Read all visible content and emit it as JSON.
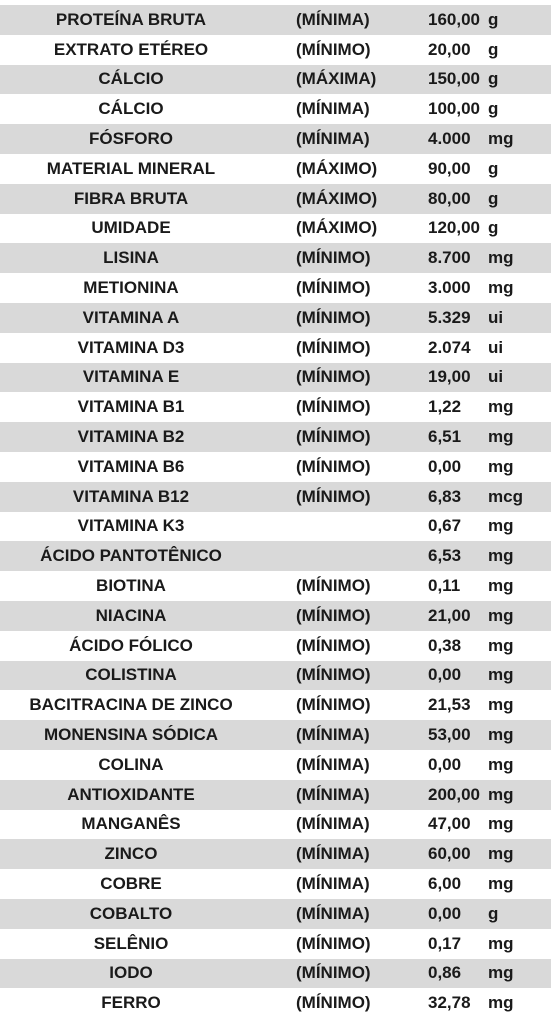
{
  "rows": [
    {
      "name": "PROTEÍNA BRUTA",
      "qualifier": "(MÍNIMA)",
      "value": "160,00",
      "unit": "g"
    },
    {
      "name": "EXTRATO ETÉREO",
      "qualifier": "(MÍNIMO)",
      "value": "20,00",
      "unit": "g"
    },
    {
      "name": "CÁLCIO",
      "qualifier": "(MÁXIMA)",
      "value": "150,00",
      "unit": "g"
    },
    {
      "name": "CÁLCIO",
      "qualifier": "(MÍNIMA)",
      "value": "100,00",
      "unit": "g"
    },
    {
      "name": "FÓSFORO",
      "qualifier": "(MÍNIMA)",
      "value": "4.000",
      "unit": "mg"
    },
    {
      "name": "MATERIAL MINERAL",
      "qualifier": "(MÁXIMO)",
      "value": "90,00",
      "unit": "g"
    },
    {
      "name": "FIBRA BRUTA",
      "qualifier": "(MÁXIMO)",
      "value": "80,00",
      "unit": "g"
    },
    {
      "name": "UMIDADE",
      "qualifier": "(MÁXIMO)",
      "value": "120,00",
      "unit": "g"
    },
    {
      "name": "LISINA",
      "qualifier": "(MÍNIMO)",
      "value": "8.700",
      "unit": "mg"
    },
    {
      "name": "METIONINA",
      "qualifier": "(MÍNIMO)",
      "value": "3.000",
      "unit": "mg"
    },
    {
      "name": "VITAMINA A",
      "qualifier": "(MÍNIMO)",
      "value": "5.329",
      "unit": "ui"
    },
    {
      "name": "VITAMINA D3",
      "qualifier": "(MÍNIMO)",
      "value": "2.074",
      "unit": "ui"
    },
    {
      "name": "VITAMINA E",
      "qualifier": "(MÍNIMO)",
      "value": "19,00",
      "unit": "ui"
    },
    {
      "name": "VITAMINA B1",
      "qualifier": "(MÍNIMO)",
      "value": "1,22",
      "unit": "mg"
    },
    {
      "name": "VITAMINA B2",
      "qualifier": "(MÍNIMO)",
      "value": "6,51",
      "unit": "mg"
    },
    {
      "name": "VITAMINA B6",
      "qualifier": "(MÍNIMO)",
      "value": "0,00",
      "unit": "mg"
    },
    {
      "name": "VITAMINA B12",
      "qualifier": "(MÍNIMO)",
      "value": "6,83",
      "unit": "mcg"
    },
    {
      "name": "VITAMINA K3",
      "qualifier": "",
      "value": "0,67",
      "unit": "mg"
    },
    {
      "name": "ÁCIDO PANTOTÊNICO",
      "qualifier": "",
      "value": "6,53",
      "unit": "mg"
    },
    {
      "name": "BIOTINA",
      "qualifier": "(MÍNIMO)",
      "value": "0,11",
      "unit": "mg"
    },
    {
      "name": "NIACINA",
      "qualifier": "(MÍNIMO)",
      "value": "21,00",
      "unit": "mg"
    },
    {
      "name": "ÁCIDO FÓLICO",
      "qualifier": "(MÍNIMO)",
      "value": "0,38",
      "unit": "mg"
    },
    {
      "name": "COLISTINA",
      "qualifier": "(MÍNIMO)",
      "value": "0,00",
      "unit": "mg"
    },
    {
      "name": "BACITRACINA DE ZINCO",
      "qualifier": "(MÍNIMO)",
      "value": "21,53",
      "unit": "mg"
    },
    {
      "name": "MONENSINA SÓDICA",
      "qualifier": "(MÍNIMA)",
      "value": "53,00",
      "unit": "mg"
    },
    {
      "name": "COLINA",
      "qualifier": "(MÍNIMA)",
      "value": "0,00",
      "unit": "mg"
    },
    {
      "name": "ANTIOXIDANTE",
      "qualifier": "(MÍNIMA)",
      "value": "200,00",
      "unit": "mg"
    },
    {
      "name": "MANGANÊS",
      "qualifier": "(MÍNIMA)",
      "value": "47,00",
      "unit": "mg"
    },
    {
      "name": "ZINCO",
      "qualifier": "(MÍNIMA)",
      "value": "60,00",
      "unit": "mg"
    },
    {
      "name": "COBRE",
      "qualifier": "(MÍNIMA)",
      "value": "6,00",
      "unit": "mg"
    },
    {
      "name": "COBALTO",
      "qualifier": "(MÍNIMA)",
      "value": "0,00",
      "unit": "g"
    },
    {
      "name": "SELÊNIO",
      "qualifier": "(MÍNIMO)",
      "value": "0,17",
      "unit": "mg"
    },
    {
      "name": "IODO",
      "qualifier": "(MÍNIMO)",
      "value": "0,86",
      "unit": "mg"
    },
    {
      "name": "FERRO",
      "qualifier": "(MÍNIMO)",
      "value": "32,78",
      "unit": "mg"
    }
  ],
  "colors": {
    "shaded_row": "#d9d9d9",
    "white_row": "#ffffff",
    "text": "#1a1a1a"
  }
}
